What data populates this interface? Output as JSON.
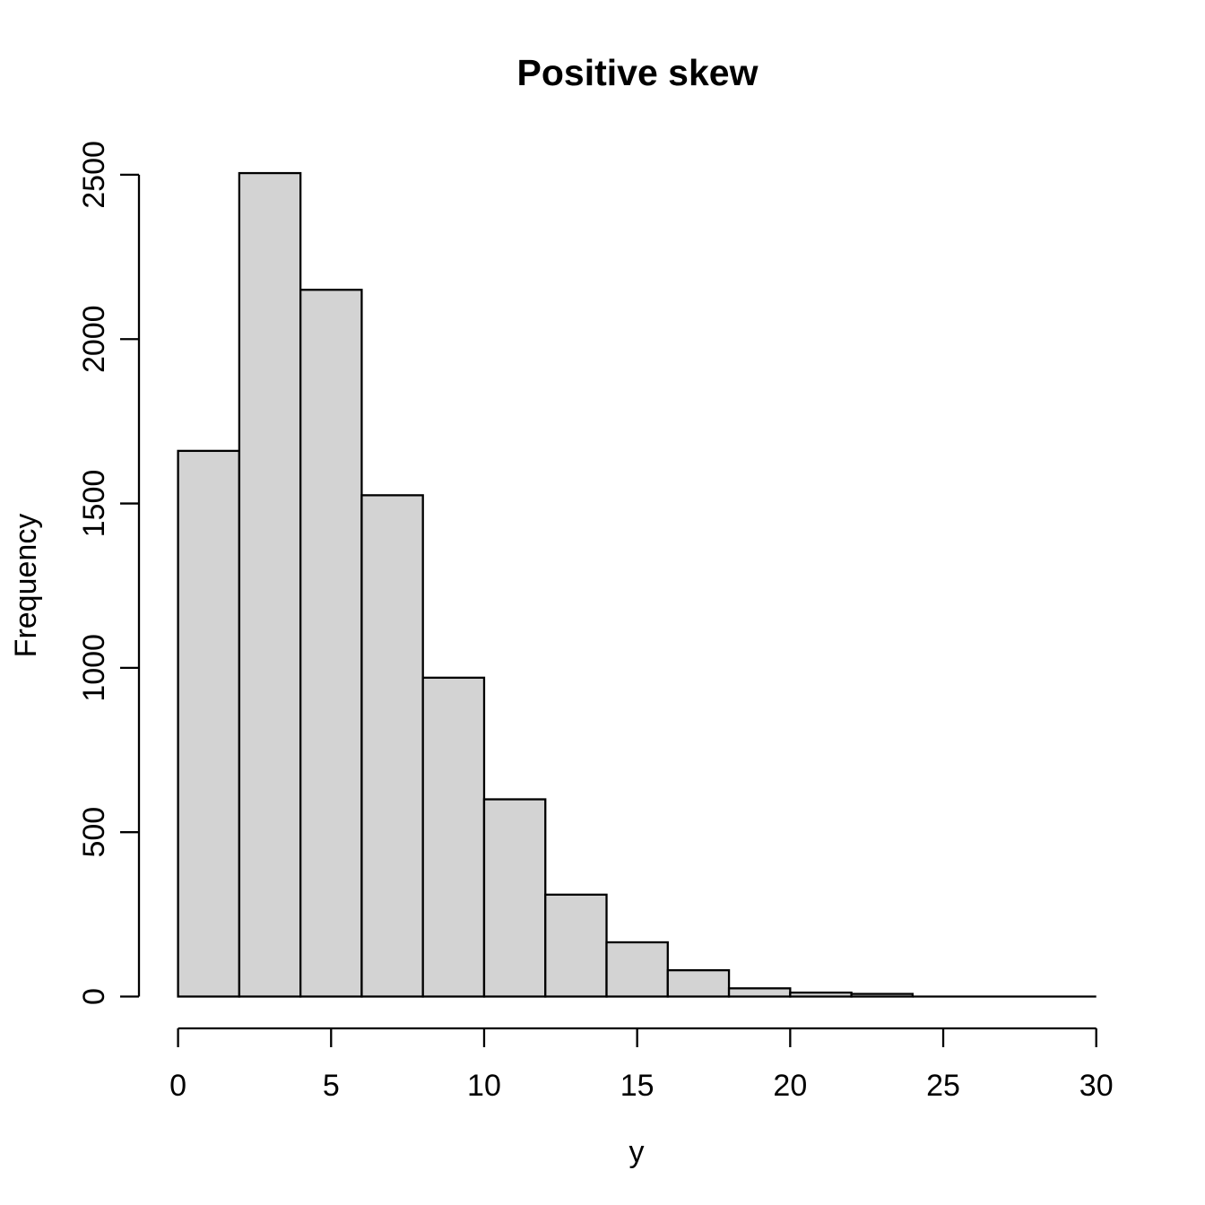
{
  "figure": {
    "title": "Positive skew",
    "xlabel": "y",
    "ylabel": "Frequency"
  },
  "colors": {
    "background": "#ffffff",
    "bar_fill": "#d3d3d3",
    "bar_stroke": "#000000",
    "axis": "#000000",
    "text": "#000000"
  },
  "chart_data": {
    "type": "bar",
    "subtype": "histogram",
    "title": "Positive skew",
    "xlabel": "y",
    "ylabel": "Frequency",
    "bin_width": 2,
    "bin_edges": [
      0,
      2,
      4,
      6,
      8,
      10,
      12,
      14,
      16,
      18,
      20,
      22,
      24
    ],
    "counts": [
      1660,
      2505,
      2150,
      1525,
      970,
      600,
      310,
      165,
      80,
      25,
      12,
      8
    ],
    "empty_bins_to": 30,
    "x_ticks": [
      0,
      5,
      10,
      15,
      20,
      25,
      30
    ],
    "y_ticks": [
      0,
      500,
      1000,
      1500,
      2000,
      2500
    ],
    "xlim": [
      0,
      30
    ],
    "ylim": [
      0,
      2500
    ],
    "grid": false,
    "legend_position": "none"
  }
}
